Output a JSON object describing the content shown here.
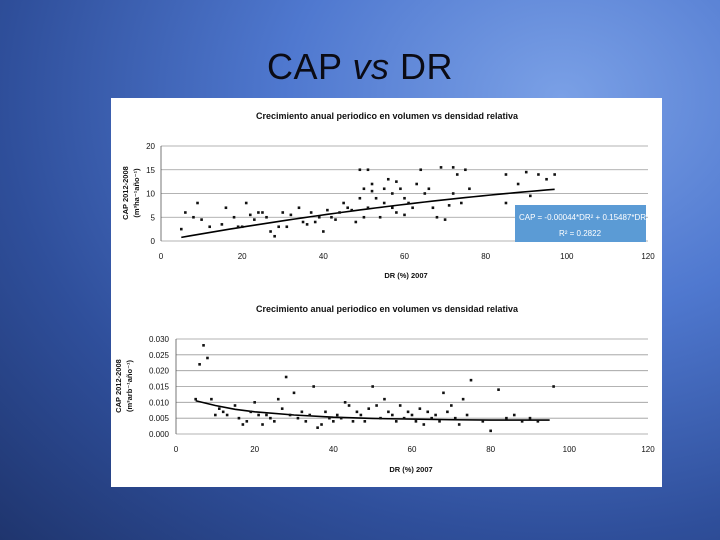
{
  "slide": {
    "title_main": "CAP",
    "title_vs": "vs",
    "title_end": "DR"
  },
  "colors": {
    "background_top": "#7aa0e6",
    "background_bottom": "#1f356e",
    "equation_box": "#5b9bd5",
    "points": "#111111"
  },
  "chart_data": [
    {
      "type": "scatter",
      "title": "Crecimiento anual periodico en volumen vs densidad relativa",
      "xlabel": "DR (%) 2007",
      "ylabel_line1": "CAP 2012-2008",
      "ylabel_line2": "(m³ha⁻¹año⁻¹)",
      "xlim": [
        0,
        120
      ],
      "ylim": [
        0,
        20
      ],
      "xticks": [
        "0",
        "20",
        "40",
        "60",
        "80",
        "100",
        "120"
      ],
      "yticks": [
        "0",
        "5",
        "10",
        "15",
        "20"
      ],
      "grid": true,
      "trendline": {
        "type": "polynomial",
        "a": -0.00044,
        "b": 0.15487,
        "c": 0
      },
      "equation": "CAP = -0.00044*DR² + 0.15487*DR",
      "r2": "R² = 0.2822",
      "x": [
        5,
        6,
        8,
        9,
        10,
        12,
        15,
        16,
        18,
        19,
        20,
        21,
        22,
        23,
        24,
        25,
        26,
        27,
        28,
        29,
        30,
        31,
        32,
        34,
        35,
        36,
        37,
        38,
        39,
        40,
        41,
        42,
        43,
        44,
        45,
        46,
        47,
        48,
        49,
        49,
        50,
        50,
        51,
        51,
        52,
        52,
        53,
        54,
        55,
        55,
        56,
        57,
        57,
        58,
        58,
        59,
        60,
        60,
        61,
        62,
        63,
        64,
        65,
        66,
        67,
        68,
        69,
        70,
        71,
        72,
        72,
        73,
        74,
        75,
        76,
        85,
        85,
        88,
        90,
        91,
        93,
        95,
        97
      ],
      "y": [
        2.5,
        6,
        5,
        8,
        4.5,
        3,
        3.5,
        7,
        5,
        3,
        3,
        8,
        5.5,
        4.5,
        6,
        6,
        5,
        2,
        1,
        3,
        6,
        3,
        5.5,
        7,
        4,
        3.5,
        6,
        4,
        5,
        2,
        6.5,
        5,
        4.5,
        6,
        8,
        7,
        6.5,
        4,
        9,
        15,
        5,
        11,
        7,
        15,
        10.5,
        12,
        9,
        5,
        8,
        11,
        13,
        7,
        10,
        6,
        12.5,
        11,
        5.5,
        9,
        8,
        7,
        12,
        15,
        10,
        11,
        7,
        5,
        15.5,
        4.5,
        7.5,
        15.5,
        10,
        14,
        8,
        15,
        11,
        14,
        8,
        12,
        14.5,
        9.5,
        14,
        13,
        14
      ]
    },
    {
      "type": "scatter",
      "title": "Crecimiento anual periodico en volumen vs densidad relativa",
      "xlabel": "DR (%) 2007",
      "ylabel_line1": "CAP 2012-2008",
      "ylabel_line2": "(m³arb⁻¹año⁻¹)",
      "xlim": [
        0,
        120
      ],
      "ylim": [
        0,
        0.03
      ],
      "xticks": [
        "0",
        "20",
        "40",
        "60",
        "80",
        "100",
        "120"
      ],
      "yticks": [
        "0.000",
        "0.005",
        "0.010",
        "0.015",
        "0.020",
        "0.025",
        "0.030"
      ],
      "grid": true,
      "trendline": {
        "type": "smooth"
      },
      "trend_x": [
        5,
        10,
        15,
        20,
        30,
        40,
        50,
        60,
        70,
        80,
        90,
        95
      ],
      "trend_y": [
        0.0105,
        0.009,
        0.0078,
        0.007,
        0.006,
        0.0053,
        0.0049,
        0.0047,
        0.0045,
        0.0044,
        0.0044,
        0.0044
      ],
      "x": [
        5,
        6,
        7,
        8,
        9,
        10,
        11,
        12,
        13,
        15,
        16,
        17,
        18,
        19,
        20,
        21,
        22,
        23,
        24,
        25,
        26,
        27,
        28,
        29,
        30,
        31,
        32,
        33,
        34,
        35,
        36,
        37,
        38,
        39,
        40,
        41,
        42,
        43,
        44,
        45,
        46,
        47,
        48,
        49,
        50,
        51,
        52,
        53,
        54,
        55,
        56,
        57,
        58,
        59,
        60,
        61,
        62,
        63,
        64,
        65,
        66,
        67,
        68,
        69,
        70,
        71,
        72,
        73,
        74,
        75,
        78,
        80,
        82,
        84,
        86,
        88,
        90,
        92,
        96
      ],
      "y": [
        0.011,
        0.022,
        0.028,
        0.024,
        0.011,
        0.006,
        0.008,
        0.007,
        0.006,
        0.009,
        0.005,
        0.003,
        0.004,
        0.007,
        0.01,
        0.006,
        0.003,
        0.006,
        0.005,
        0.004,
        0.011,
        0.008,
        0.018,
        0.006,
        0.013,
        0.005,
        0.007,
        0.004,
        0.006,
        0.015,
        0.002,
        0.003,
        0.007,
        0.005,
        0.004,
        0.006,
        0.005,
        0.01,
        0.009,
        0.004,
        0.007,
        0.006,
        0.004,
        0.008,
        0.015,
        0.009,
        0.005,
        0.011,
        0.007,
        0.006,
        0.004,
        0.009,
        0.005,
        0.007,
        0.006,
        0.004,
        0.008,
        0.003,
        0.007,
        0.005,
        0.006,
        0.004,
        0.013,
        0.007,
        0.009,
        0.005,
        0.003,
        0.011,
        0.006,
        0.017,
        0.004,
        0.001,
        0.014,
        0.005,
        0.006,
        0.004,
        0.005,
        0.004,
        0.015
      ]
    }
  ]
}
